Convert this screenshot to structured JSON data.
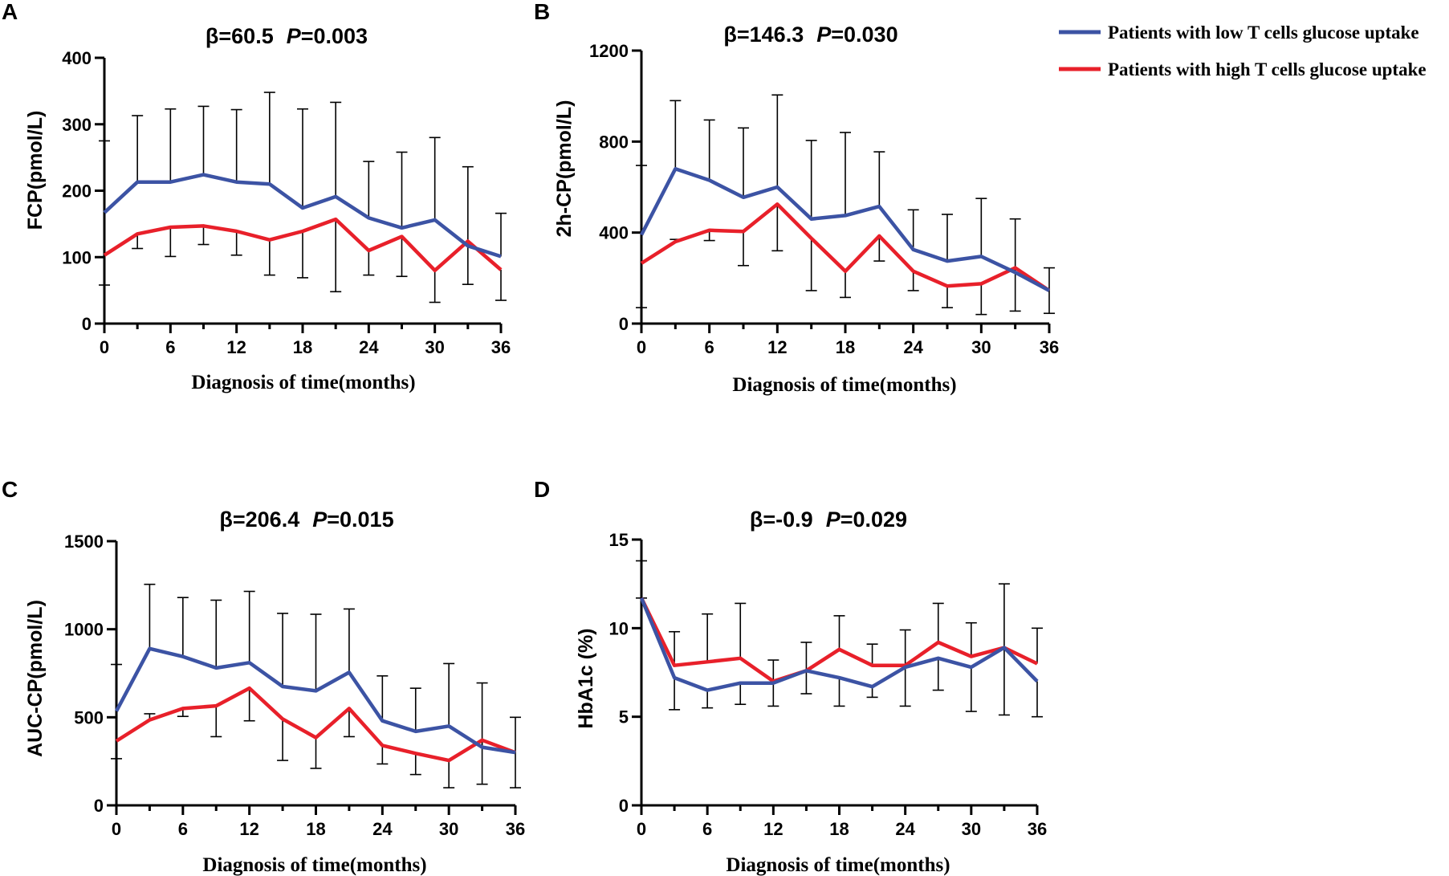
{
  "colors": {
    "low": "#3c53a4",
    "high": "#e8202a",
    "axis": "#000000",
    "error": "#000000"
  },
  "legend": {
    "low": "Patients with low T cells  glucose uptake",
    "high": "Patients with high T cells glucose uptake"
  },
  "chart_data": [
    {
      "panel": "A",
      "type": "line",
      "beta_text": "β=60.5",
      "p_label": "P",
      "p_value": "=0.003",
      "ylabel": "FCP(pmol/L)",
      "xlabel": "Diagnosis of time(months)",
      "ylim": [
        0,
        400
      ],
      "yticks": [
        0,
        100,
        200,
        300,
        400
      ],
      "xlim": [
        0,
        36
      ],
      "xticks": [
        0,
        6,
        12,
        18,
        24,
        30,
        36
      ],
      "x": [
        0,
        3,
        6,
        9,
        12,
        15,
        18,
        21,
        24,
        27,
        30,
        33,
        36
      ],
      "series": [
        {
          "name": "Patients with low T cells  glucose uptake",
          "key": "low",
          "values": [
            167,
            213,
            213,
            224,
            213,
            210,
            174,
            191,
            159,
            144,
            156,
            117,
            101
          ],
          "err_upper": [
            275,
            313,
            323,
            327,
            322,
            348,
            323,
            333,
            244,
            258,
            280,
            236,
            166
          ]
        },
        {
          "name": "Patients with high T cells glucose uptake",
          "key": "high",
          "values": [
            103,
            135,
            145,
            147,
            139,
            126,
            139,
            157,
            110,
            131,
            80,
            124,
            81
          ],
          "err_lower": [
            58,
            113,
            101,
            119,
            103,
            73,
            69,
            48,
            73,
            71,
            32,
            59,
            35
          ]
        }
      ]
    },
    {
      "panel": "B",
      "type": "line",
      "beta_text": "β=146.3",
      "p_label": "P",
      "p_value": "=0.030",
      "ylabel": "2h-CP(pmol/L)",
      "xlabel": "Diagnosis of time(months)",
      "ylim": [
        0,
        1200
      ],
      "yticks": [
        0,
        400,
        800,
        1200
      ],
      "xlim": [
        0,
        36
      ],
      "xticks": [
        0,
        6,
        12,
        18,
        24,
        30,
        36
      ],
      "x": [
        0,
        3,
        6,
        9,
        12,
        15,
        18,
        21,
        24,
        27,
        30,
        33,
        36
      ],
      "series": [
        {
          "name": "Patients with low T cells  glucose uptake",
          "key": "low",
          "values": [
            390,
            680,
            630,
            555,
            600,
            460,
            475,
            515,
            325,
            275,
            295,
            225,
            145
          ],
          "err_upper": [
            695,
            980,
            895,
            860,
            1005,
            805,
            840,
            755,
            500,
            480,
            550,
            460,
            245
          ]
        },
        {
          "name": "Patients with high T cells glucose uptake",
          "key": "high",
          "values": [
            265,
            360,
            410,
            405,
            525,
            375,
            230,
            385,
            230,
            165,
            175,
            245,
            145
          ],
          "err_lower": [
            70,
            370,
            365,
            255,
            320,
            145,
            115,
            275,
            145,
            70,
            40,
            55,
            45
          ]
        }
      ]
    },
    {
      "panel": "C",
      "type": "line",
      "beta_text": "β=206.4",
      "p_label": "P",
      "p_value": "=0.015",
      "ylabel": "AUC-CP(pmol/L)",
      "xlabel": "Diagnosis of time(months)",
      "ylim": [
        0,
        1500
      ],
      "yticks": [
        0,
        500,
        1000,
        1500
      ],
      "xlim": [
        0,
        36
      ],
      "xticks": [
        0,
        6,
        12,
        18,
        24,
        30,
        36
      ],
      "x": [
        0,
        3,
        6,
        9,
        12,
        15,
        18,
        21,
        24,
        27,
        30,
        33,
        36
      ],
      "series": [
        {
          "name": "Patients with low T cells  glucose uptake",
          "key": "low",
          "values": [
            535,
            890,
            845,
            780,
            810,
            675,
            650,
            755,
            480,
            420,
            450,
            330,
            300
          ],
          "err_upper": [
            800,
            1255,
            1180,
            1165,
            1215,
            1090,
            1085,
            1115,
            735,
            665,
            805,
            695,
            500
          ]
        },
        {
          "name": "Patients with high T cells glucose uptake",
          "key": "high",
          "values": [
            365,
            485,
            550,
            565,
            665,
            490,
            385,
            550,
            340,
            295,
            255,
            370,
            300
          ],
          "err_lower": [
            265,
            520,
            505,
            390,
            480,
            255,
            210,
            390,
            235,
            175,
            100,
            120,
            100
          ]
        }
      ]
    },
    {
      "panel": "D",
      "type": "line",
      "beta_text": "β=-0.9",
      "p_label": "P",
      "p_value": "=0.029",
      "ylabel": "HbA1c  (%)",
      "xlabel": "Diagnosis of time(months)",
      "ylim": [
        0,
        15
      ],
      "yticks": [
        0,
        5,
        10,
        15
      ],
      "xlim": [
        0,
        36
      ],
      "xticks": [
        0,
        6,
        12,
        18,
        24,
        30,
        36
      ],
      "x": [
        0,
        3,
        6,
        9,
        12,
        15,
        18,
        21,
        24,
        27,
        30,
        33,
        36
      ],
      "series": [
        {
          "name": "Patients with low T cells  glucose uptake",
          "key": "low",
          "values": [
            11.7,
            7.2,
            6.5,
            6.9,
            6.9,
            7.6,
            7.2,
            6.7,
            7.8,
            8.3,
            7.8,
            8.9,
            7.0
          ],
          "err_lower": [
            13.8,
            5.4,
            5.5,
            5.7,
            5.6,
            6.3,
            5.6,
            6.1,
            5.6,
            6.5,
            5.3,
            5.1,
            5.0
          ]
        },
        {
          "name": "Patients with high T cells glucose uptake",
          "key": "high",
          "values": [
            11.7,
            7.9,
            8.1,
            8.3,
            7.0,
            7.6,
            8.8,
            7.9,
            7.9,
            9.2,
            8.4,
            8.9,
            8.0
          ],
          "err_upper": [
            11.7,
            9.8,
            10.8,
            11.4,
            8.2,
            9.2,
            10.7,
            9.1,
            9.9,
            11.4,
            10.3,
            12.5,
            10.0
          ]
        }
      ]
    }
  ]
}
